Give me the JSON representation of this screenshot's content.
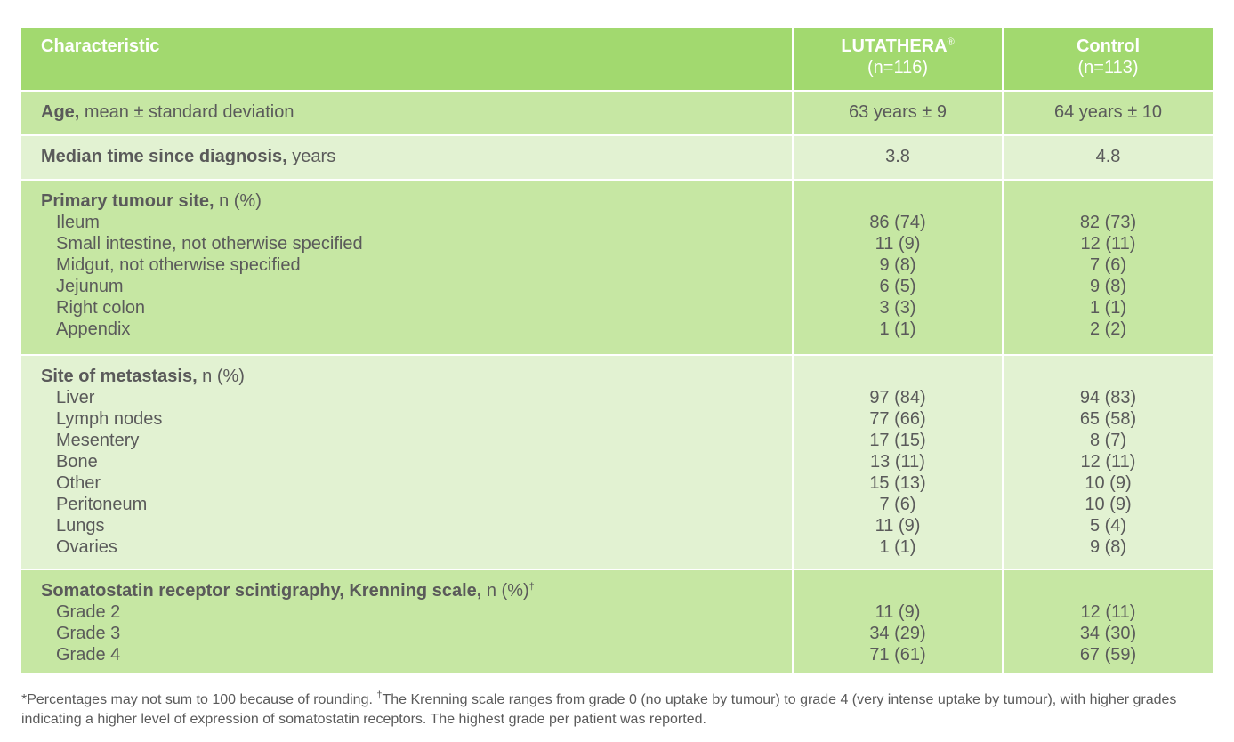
{
  "header": {
    "characteristic": "Characteristic",
    "col1_name": "LUTATHERA",
    "col1_mark": "®",
    "col1_n": "(n=116)",
    "col2_name": "Control",
    "col2_n": "(n=113)"
  },
  "age": {
    "label_bold": "Age,",
    "label_rest": " mean ± standard deviation",
    "v1": "63 years ± 9",
    "v2": "64 years ± 10"
  },
  "median": {
    "label_bold": "Median time since diagnosis,",
    "label_rest": " years",
    "v1": "3.8",
    "v2": "4.8"
  },
  "primary": {
    "label_bold": "Primary tumour site,",
    "label_rest": " n (%)",
    "items": [
      {
        "label": "Ileum",
        "v1": "86 (74)",
        "v2": "82 (73)"
      },
      {
        "label": "Small intestine, not otherwise specified",
        "v1": "11 (9)",
        "v2": "12 (11)"
      },
      {
        "label": "Midgut, not otherwise specified",
        "v1": "9 (8)",
        "v2": "7 (6)"
      },
      {
        "label": "Jejunum",
        "v1": "6 (5)",
        "v2": "9 (8)"
      },
      {
        "label": "Right colon",
        "v1": "3 (3)",
        "v2": "1 (1)"
      },
      {
        "label": "Appendix",
        "v1": "1 (1)",
        "v2": "2 (2)"
      }
    ]
  },
  "metastasis": {
    "label_bold": "Site of metastasis,",
    "label_rest": " n (%)",
    "items": [
      {
        "label": "Liver",
        "v1": "97 (84)",
        "v2": "94 (83)"
      },
      {
        "label": "Lymph nodes",
        "v1": "77 (66)",
        "v2": "65 (58)"
      },
      {
        "label": "Mesentery",
        "v1": "17 (15)",
        "v2": "8 (7)"
      },
      {
        "label": "Bone",
        "v1": "13 (11)",
        "v2": "12 (11)"
      },
      {
        "label": "Other",
        "v1": "15 (13)",
        "v2": "10 (9)"
      },
      {
        "label": "Peritoneum",
        "v1": "7 (6)",
        "v2": "10 (9)"
      },
      {
        "label": "Lungs",
        "v1": "11 (9)",
        "v2": "5 (4)"
      },
      {
        "label": "Ovaries",
        "v1": "1 (1)",
        "v2": "9 (8)"
      }
    ]
  },
  "somato": {
    "label_bold": "Somatostatin receptor scintigraphy, Krenning scale,",
    "label_rest": " n (%)",
    "label_mark": "†",
    "items": [
      {
        "label": "Grade 2",
        "v1": "11 (9)",
        "v2": "12 (11)"
      },
      {
        "label": "Grade 3",
        "v1": "34 (29)",
        "v2": "34 (30)"
      },
      {
        "label": "Grade 4",
        "v1": "71 (61)",
        "v2": "67 (59)"
      }
    ]
  },
  "footnote": {
    "text1": "*Percentages may not sum to 100 because of rounding. ",
    "mark": "†",
    "text2": "The Krenning scale ranges from grade 0 (no uptake by tumour) to grade 4 (very intense uptake by tumour), with higher grades indicating a higher level of expression of somatostatin receptors. The highest grade per patient was reported."
  },
  "colors": {
    "header_bg": "#a2d96f",
    "dark_row": "#c6e7a3",
    "light_row": "#e2f2d2",
    "text": "#5a5a5a"
  }
}
